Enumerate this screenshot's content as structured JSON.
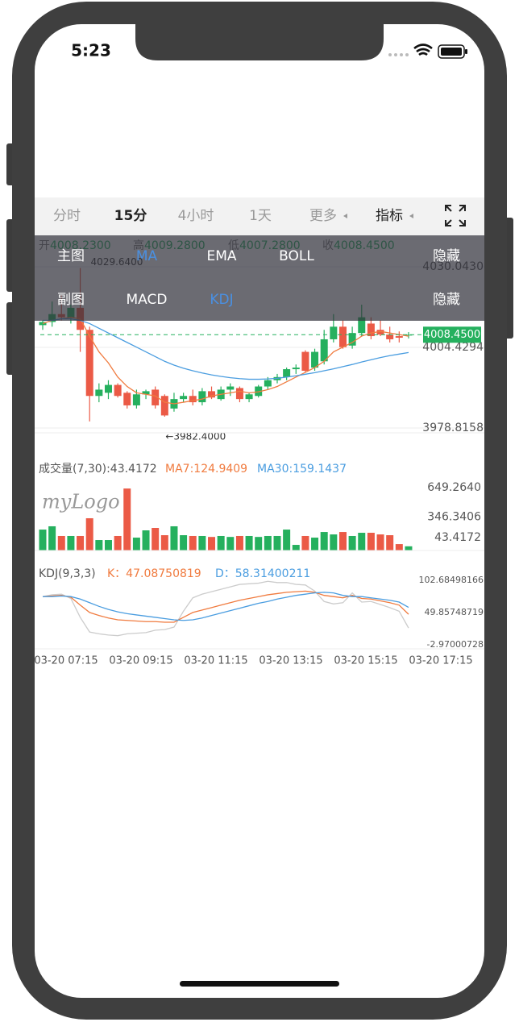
{
  "status_bar": {
    "time": "5:23"
  },
  "tabs": {
    "items": [
      "分时",
      "15分",
      "4小时",
      "1天",
      "更多",
      "指标"
    ],
    "active": 1
  },
  "overlay": {
    "main_label": "主图",
    "main_options": [
      "MA",
      "EMA",
      "BOLL"
    ],
    "main_active": 0,
    "main_hide": "隐藏",
    "sub_label": "副图",
    "sub_options": [
      "MACD",
      "KDJ"
    ],
    "sub_active": 1,
    "sub_hide": "隐藏"
  },
  "chart": {
    "info": [
      {
        "label": "开",
        "value": "4008.2300"
      },
      {
        "label": "高",
        "value": "4009.2800"
      },
      {
        "label": "低",
        "value": "4007.2800"
      },
      {
        "label": "收",
        "value": "4008.4500"
      }
    ],
    "up_color": "#25b05e",
    "down_color": "#eb5a46",
    "main": {
      "ylim": [
        3977.28,
        4039.26
      ],
      "yticks": [
        {
          "value": 4030.043,
          "label": "4030.0430"
        },
        {
          "value": 4004.4294,
          "label": "4004.4294"
        },
        {
          "value": 3978.8158,
          "label": "3978.8158"
        }
      ],
      "open": [
        4011.5,
        4012.5,
        4015,
        4014,
        4017,
        4010,
        3989,
        3990,
        3992.5,
        3990,
        3986,
        3989.5,
        3991,
        3989,
        3985,
        3988,
        3989,
        3987,
        3990.5,
        3988,
        3991,
        3991.5,
        3988,
        3989,
        3992,
        3994,
        3995,
        3997.5,
        4003,
        3998,
        4000,
        4007,
        4011,
        4005,
        4009,
        4012,
        4010,
        4008.5,
        4008,
        4008.23
      ],
      "high": [
        4013,
        4019,
        4021,
        4018,
        4029.64,
        4011,
        3993,
        3994,
        3993,
        3990.5,
        3991,
        3991,
        3992,
        3989.5,
        3990,
        3990,
        3991,
        3991.5,
        3992,
        3992,
        3993,
        3992,
        3990,
        3992.5,
        3995,
        3996,
        3998,
        3999,
        4003.5,
        4004,
        4010,
        4015,
        4013,
        4011,
        4018,
        4014,
        4013,
        4011,
        4009.5,
        4009.28
      ],
      "low": [
        4010,
        4011,
        4013,
        4012,
        4003,
        3980.9,
        3987,
        3988,
        3988.5,
        3985,
        3985,
        3988,
        3985,
        3982.4,
        3984,
        3987,
        3986,
        3986,
        3988,
        3987.5,
        3989,
        3987,
        3987,
        3988.5,
        3991,
        3993,
        3994,
        3996,
        3996.5,
        3997,
        3999,
        4006,
        4004,
        4004,
        4008,
        4007,
        4008,
        4006,
        4006,
        4007.28
      ],
      "close": [
        4012.5,
        4015,
        4014,
        4017,
        4010,
        3989,
        3991,
        3992.5,
        3989,
        3986,
        3989.5,
        3990.5,
        3986,
        3982.8,
        3988,
        3989,
        3987,
        3990.5,
        3988.5,
        3991,
        3992,
        3988,
        3989.5,
        3992,
        3994,
        3995,
        3997.5,
        3998,
        3997,
        4003,
        4007,
        4011,
        4004.5,
        4009,
        4014,
        4008,
        4008.5,
        4007,
        4007.5,
        4008.45
      ],
      "lines": [
        {
          "color": "#f07b3f",
          "values": [
            4012,
            4013,
            4013.5,
            4014,
            4013.5,
            4008,
            4003,
            3999.5,
            3995,
            3992,
            3990,
            3989.5,
            3989,
            3987,
            3986.5,
            3987,
            3987.5,
            3988,
            3989,
            3989.5,
            3990,
            3990.5,
            3990,
            3990.3,
            3991,
            3992,
            3993.5,
            3995,
            3996.5,
            3998,
            4000,
            4003,
            4004.5,
            4006,
            4008,
            4009,
            4009.5,
            4009,
            4008.5,
            4008
          ]
        },
        {
          "color": "#4a9de0",
          "values": [
            4013,
            4013,
            4013.5,
            4013.5,
            4013,
            4012,
            4010.5,
            4009,
            4007.5,
            4006,
            4004.5,
            4003,
            4001.5,
            4000,
            3998.8,
            3997.8,
            3997,
            3996.3,
            3995.7,
            3995.2,
            3994.8,
            3994.5,
            3994.3,
            3994.3,
            3994.4,
            3994.6,
            3995,
            3995.4,
            3995.9,
            3996.4,
            3997,
            3997.6,
            3998.3,
            3999,
            3999.8,
            4000.5,
            4001.2,
            4001.8,
            4002.3,
            4002.8
          ]
        }
      ],
      "max_label": "4029.6400",
      "max_index": 4,
      "min_label": "←3982.4000",
      "min_index": 13,
      "last_price": {
        "value": 4008.45,
        "label": "4008.4500"
      }
    },
    "volume": {
      "ylim": [
        0,
        649.264
      ],
      "header": "成交量(7,30):43.4172",
      "ma7": "MA7:124.9409",
      "ma30": "MA30:159.1437",
      "ma7_color": "#f07b3f",
      "ma30_color": "#4a9de0",
      "yticks": [
        {
          "value": 649.264,
          "label": "649.2640"
        },
        {
          "value": 346.3406,
          "label": "346.3406"
        },
        {
          "value": 43.4172,
          "label": "43.4172"
        }
      ],
      "watermark": "myLogo",
      "values": [
        216,
        250,
        150,
        150,
        150,
        333,
        108,
        108,
        150,
        640,
        133,
        208,
        233,
        158,
        250,
        158,
        150,
        150,
        140,
        150,
        140,
        150,
        150,
        140,
        150,
        150,
        216,
        58,
        150,
        133,
        191,
        166,
        191,
        150,
        183,
        183,
        166,
        158,
        66,
        43.4172
      ]
    },
    "kdj": {
      "ylim": [
        -2.97000728,
        102.68498166
      ],
      "header": "KDJ(9,3,3)",
      "k_label": "K：47.08750819",
      "d_label": "D：58.31400211",
      "yticks": [
        102.68498166,
        49.85748719,
        -2.97000728
      ],
      "series": [
        {
          "color": "#cccccc",
          "values": [
            76,
            79,
            80,
            73,
            42,
            18,
            15,
            13,
            12,
            15,
            16,
            17,
            21,
            22,
            26,
            52,
            74,
            80,
            84,
            88,
            92,
            96,
            97,
            98,
            101,
            99,
            99,
            96,
            95,
            85,
            68,
            64,
            66,
            82,
            67,
            68,
            63,
            58,
            52,
            24.6
          ]
        },
        {
          "color": "#f07b3f",
          "values": [
            76,
            77,
            78,
            75,
            62,
            50,
            45,
            41,
            38,
            37,
            36,
            35,
            35,
            34,
            34,
            42,
            50,
            54,
            58,
            62,
            66,
            70,
            73,
            76,
            79,
            81,
            83,
            84,
            85,
            83,
            78,
            76,
            74,
            78,
            73,
            72,
            69,
            66,
            62,
            47.08750819
          ]
        },
        {
          "color": "#4a9de0",
          "values": [
            76,
            76,
            77,
            76,
            72,
            66,
            60,
            55,
            51,
            48,
            46,
            44,
            42,
            40,
            38,
            37,
            38,
            41,
            45,
            49,
            53,
            57,
            61,
            65,
            68,
            72,
            75,
            78,
            80,
            82,
            83,
            82,
            78,
            76,
            76,
            74,
            72,
            70,
            67,
            58.31400211
          ]
        }
      ]
    },
    "x_labels": [
      "03-20 07:15",
      "03-20 09:15",
      "03-20 11:15",
      "03-20 13:15",
      "03-20 15:15",
      "03-20 17:15"
    ]
  }
}
